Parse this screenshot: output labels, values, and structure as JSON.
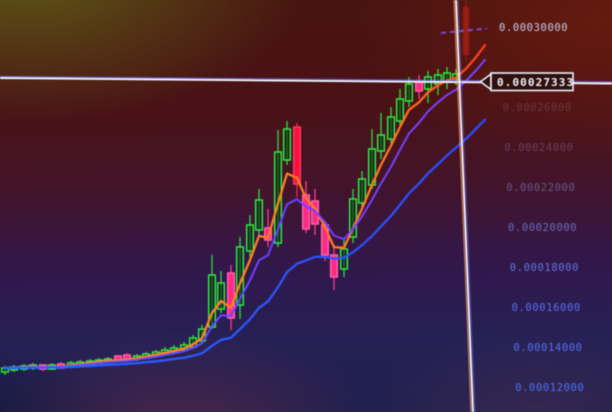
{
  "chart_data": {
    "type": "candlestick",
    "description": "Cryptocurrency trading candlestick chart with three moving averages and a crosshair price marker",
    "price_unit": 1e-05,
    "ylim": [
      0.000115,
      0.000315
    ],
    "grid": false,
    "price_axis": {
      "side": "right",
      "labels": [
        {
          "value": 30,
          "text": "0.00030000",
          "color": "#cdd4f2",
          "opacity": 0.95
        },
        {
          "value": 26,
          "text": "0.00026000",
          "color": "#a892b4",
          "opacity": 0.26
        },
        {
          "value": 24,
          "text": "0.00024000",
          "color": "#a090c0",
          "opacity": 0.36
        },
        {
          "value": 22,
          "text": "0.00022000",
          "color": "#8e89d2",
          "opacity": 0.55
        },
        {
          "value": 20,
          "text": "0.00020000",
          "color": "#7d86e2",
          "opacity": 0.75
        },
        {
          "value": 18,
          "text": "0.00018000",
          "color": "#6e84f0",
          "opacity": 0.85
        },
        {
          "value": 16,
          "text": "0.00016000",
          "color": "#6179f4",
          "opacity": 0.9
        },
        {
          "value": 14,
          "text": "0.00014000",
          "color": "#5976f6",
          "opacity": 0.93
        },
        {
          "value": 12,
          "text": "0.00012000",
          "color": "#5273f8",
          "opacity": 0.95
        }
      ]
    },
    "crosshair": {
      "price": 27.333,
      "label": "0.00027333",
      "horizontal": {
        "x1": 0,
        "y1": 78,
        "x2": 612,
        "y2": 83.5
      },
      "vertical": {
        "x1": 456,
        "y1": 0,
        "x2": 473,
        "y2": 412
      },
      "tag": {
        "x": 491,
        "y": 73,
        "w": 82,
        "h": 17.5,
        "tip_x": 480.5
      }
    },
    "high_marker_dash": {
      "x1": 441,
      "y1": 33,
      "x2": 487,
      "y2": 28.5,
      "color": "#7d55ff"
    },
    "moving_averages": [
      {
        "name": "fast",
        "period": 4,
        "gradient": "gradFast",
        "width": 2.3
      },
      {
        "name": "mid",
        "period": 7,
        "gradient": "gradMid",
        "width": 2.0
      },
      {
        "name": "slow",
        "period": 20,
        "gradient": "gradSlow",
        "width": 2.3
      }
    ],
    "ma_extension": [
      {
        "x": 475,
        "c": 29.2
      },
      {
        "x": 485,
        "c": 30.1
      }
    ],
    "candle_width": 6.6,
    "candles": [
      {
        "x": 5,
        "o": 12.75,
        "h": 13.05,
        "l": 12.6,
        "c": 12.95,
        "t": "g"
      },
      {
        "x": 14,
        "o": 12.85,
        "h": 13.1,
        "l": 12.75,
        "c": 13.0,
        "t": "g"
      },
      {
        "x": 24,
        "o": 12.9,
        "h": 13.15,
        "l": 12.8,
        "c": 13.05,
        "t": "g"
      },
      {
        "x": 33,
        "o": 12.95,
        "h": 13.2,
        "l": 12.85,
        "c": 13.1,
        "t": "g"
      },
      {
        "x": 43,
        "o": 13.1,
        "h": 13.15,
        "l": 12.8,
        "c": 12.9,
        "t": "p"
      },
      {
        "x": 52,
        "o": 12.9,
        "h": 13.2,
        "l": 12.85,
        "c": 13.1,
        "t": "g"
      },
      {
        "x": 61,
        "o": 13.15,
        "h": 13.25,
        "l": 12.9,
        "c": 12.95,
        "t": "p"
      },
      {
        "x": 71,
        "o": 13.0,
        "h": 13.3,
        "l": 12.95,
        "c": 13.2,
        "t": "g"
      },
      {
        "x": 80,
        "o": 13.1,
        "h": 13.35,
        "l": 13.0,
        "c": 13.25,
        "t": "g"
      },
      {
        "x": 90,
        "o": 13.15,
        "h": 13.4,
        "l": 13.1,
        "c": 13.3,
        "t": "g"
      },
      {
        "x": 99,
        "o": 13.2,
        "h": 13.45,
        "l": 13.15,
        "c": 13.35,
        "t": "g"
      },
      {
        "x": 108,
        "o": 13.25,
        "h": 13.5,
        "l": 13.2,
        "c": 13.4,
        "t": "g"
      },
      {
        "x": 118,
        "o": 13.55,
        "h": 13.6,
        "l": 13.3,
        "c": 13.35,
        "t": "p"
      },
      {
        "x": 127,
        "o": 13.6,
        "h": 13.7,
        "l": 13.35,
        "c": 13.4,
        "t": "p"
      },
      {
        "x": 137,
        "o": 13.4,
        "h": 13.65,
        "l": 13.3,
        "c": 13.55,
        "t": "g"
      },
      {
        "x": 146,
        "o": 13.45,
        "h": 13.75,
        "l": 13.4,
        "c": 13.65,
        "t": "g"
      },
      {
        "x": 156,
        "o": 13.55,
        "h": 13.85,
        "l": 13.5,
        "c": 13.75,
        "t": "g"
      },
      {
        "x": 165,
        "o": 13.65,
        "h": 14.0,
        "l": 13.6,
        "c": 13.85,
        "t": "g"
      },
      {
        "x": 174,
        "o": 13.75,
        "h": 14.1,
        "l": 13.7,
        "c": 13.95,
        "t": "g"
      },
      {
        "x": 184,
        "o": 13.85,
        "h": 14.25,
        "l": 13.8,
        "c": 14.1,
        "t": "g"
      },
      {
        "x": 193,
        "o": 14.0,
        "h": 14.6,
        "l": 13.95,
        "c": 14.45,
        "t": "g"
      },
      {
        "x": 202,
        "o": 14.3,
        "h": 15.1,
        "l": 14.25,
        "c": 14.9,
        "t": "g"
      },
      {
        "x": 212,
        "o": 15.0,
        "h": 18.6,
        "l": 14.9,
        "c": 17.6,
        "t": "g"
      },
      {
        "x": 221,
        "o": 15.9,
        "h": 17.8,
        "l": 15.7,
        "c": 17.2,
        "t": "g"
      },
      {
        "x": 231,
        "o": 17.7,
        "h": 18.1,
        "l": 14.85,
        "c": 15.45,
        "t": "p"
      },
      {
        "x": 240,
        "o": 16.1,
        "h": 19.5,
        "l": 15.4,
        "c": 19.0,
        "t": "g"
      },
      {
        "x": 250,
        "o": 18.8,
        "h": 20.6,
        "l": 18.5,
        "c": 20.1,
        "t": "g"
      },
      {
        "x": 259,
        "o": 19.85,
        "h": 21.9,
        "l": 19.6,
        "c": 21.35,
        "t": "g"
      },
      {
        "x": 268,
        "o": 19.95,
        "h": 20.9,
        "l": 19.0,
        "c": 19.35,
        "t": "p"
      },
      {
        "x": 278,
        "o": 19.2,
        "h": 24.85,
        "l": 19.0,
        "c": 23.75,
        "t": "g"
      },
      {
        "x": 287,
        "o": 23.35,
        "h": 25.3,
        "l": 23.1,
        "c": 24.9,
        "t": "g"
      },
      {
        "x": 297,
        "o": 25.0,
        "h": 25.2,
        "l": 21.5,
        "c": 22.15,
        "t": "r"
      },
      {
        "x": 306,
        "o": 21.6,
        "h": 22.3,
        "l": 19.7,
        "c": 19.9,
        "t": "p"
      },
      {
        "x": 315,
        "o": 21.3,
        "h": 21.9,
        "l": 19.6,
        "c": 20.15,
        "t": "p"
      },
      {
        "x": 325,
        "o": 20.1,
        "h": 20.3,
        "l": 18.3,
        "c": 18.6,
        "t": "p"
      },
      {
        "x": 334,
        "o": 18.6,
        "h": 19.0,
        "l": 16.85,
        "c": 17.5,
        "t": "p"
      },
      {
        "x": 344,
        "o": 17.9,
        "h": 19.4,
        "l": 17.5,
        "c": 18.9,
        "t": "g"
      },
      {
        "x": 353,
        "o": 19.5,
        "h": 21.9,
        "l": 19.2,
        "c": 21.4,
        "t": "g"
      },
      {
        "x": 362,
        "o": 21.2,
        "h": 22.8,
        "l": 21.0,
        "c": 22.4,
        "t": "g"
      },
      {
        "x": 372,
        "o": 22.1,
        "h": 24.9,
        "l": 21.9,
        "c": 23.9,
        "t": "g"
      },
      {
        "x": 381,
        "o": 23.8,
        "h": 25.7,
        "l": 23.4,
        "c": 24.6,
        "t": "g"
      },
      {
        "x": 391,
        "o": 24.4,
        "h": 26.0,
        "l": 24.2,
        "c": 25.5,
        "t": "g"
      },
      {
        "x": 400,
        "o": 25.3,
        "h": 26.9,
        "l": 25.1,
        "c": 26.4,
        "t": "g"
      },
      {
        "x": 409,
        "o": 26.3,
        "h": 27.5,
        "l": 26.0,
        "c": 27.15,
        "t": "g"
      },
      {
        "x": 419,
        "o": 27.25,
        "h": 27.6,
        "l": 26.4,
        "c": 26.8,
        "t": "p"
      },
      {
        "x": 428,
        "o": 26.9,
        "h": 27.8,
        "l": 26.2,
        "c": 27.5,
        "t": "g"
      },
      {
        "x": 438,
        "o": 27.15,
        "h": 27.9,
        "l": 26.6,
        "c": 27.6,
        "t": "g"
      },
      {
        "x": 447,
        "o": 27.25,
        "h": 28.0,
        "l": 26.9,
        "c": 27.7,
        "t": "g"
      },
      {
        "x": 456,
        "o": 27.4,
        "h": 27.9,
        "l": 27.1,
        "c": 27.65,
        "t": "g"
      },
      {
        "x": 466,
        "o": 31.0,
        "h": 31.35,
        "l": 28.3,
        "c": 28.6,
        "t": "f"
      }
    ],
    "candle_colors": {
      "g": {
        "stroke": "#3ce24b",
        "fill": "rgba(8,42,14,0.55)",
        "wick": "#34d844"
      },
      "p": {
        "stroke": "#ff63a8",
        "fill": "#ff2e82",
        "wick": "#ff3d8c"
      },
      "r": {
        "stroke": "#ff3c60",
        "fill": "#e81440",
        "wick": "#f02050"
      },
      "f": {
        "stroke": "none",
        "fill": "rgba(190,38,26,0.5)",
        "wick": "rgba(190,38,26,0.45)"
      }
    },
    "accent_colors": {
      "crosshair_white": "#f2f6ff",
      "crosshair_blue_fringe": "#6a74ff",
      "crosshair_orange_fringe": "#ff9a5a",
      "tag_fill": "#2e100e",
      "tag_border": "#eef2ff",
      "tag_text": "#f0f3ff"
    }
  }
}
